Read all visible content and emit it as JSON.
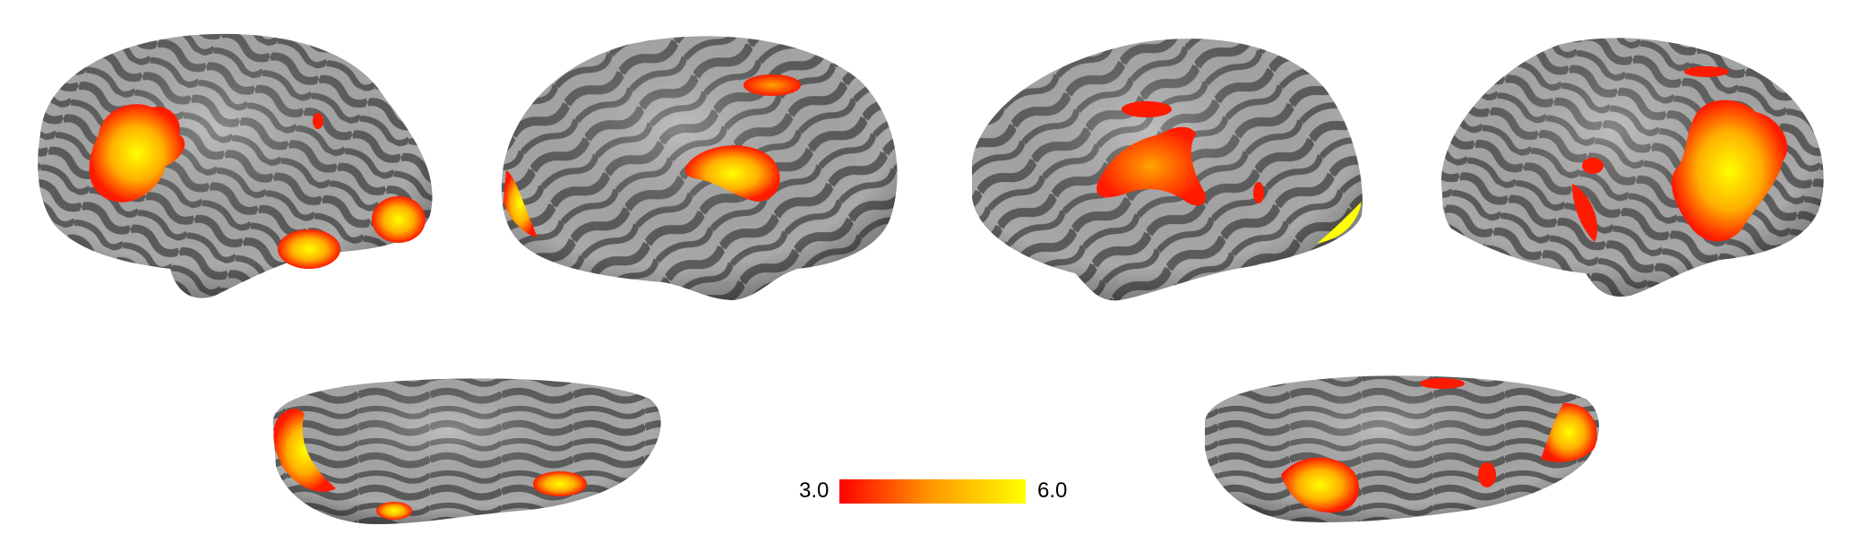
{
  "figure": {
    "description_views": [
      "left-lateral",
      "left-medial",
      "right-medial",
      "right-lateral",
      "left-ventral",
      "right-ventral"
    ],
    "colors": {
      "background": "#ffffff",
      "sulcus": "#5c5c5c",
      "gyrus": "#a9a9a9",
      "activation_low": "#ff1a00",
      "activation_mid": "#ff8c00",
      "activation_high": "#ffff00"
    }
  },
  "colorbar": {
    "min_label": "3.0",
    "max_label": "6.0",
    "min_value": 3.0,
    "max_value": 6.0,
    "colormap": "red-yellow"
  }
}
